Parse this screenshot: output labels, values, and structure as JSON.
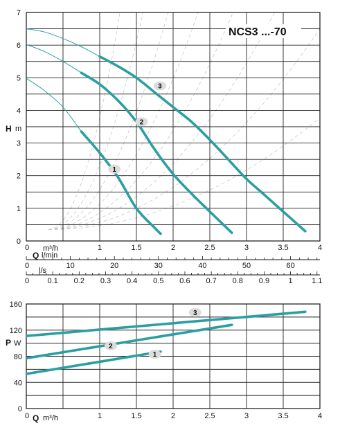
{
  "chart_data": [
    {
      "type": "line",
      "title": "NCS3 ...-70",
      "ylabel": "H m",
      "xlabel": "Q m³/h",
      "xlim": [
        0,
        4
      ],
      "ylim": [
        0,
        7
      ],
      "x_ticks": [
        "0",
        "0.5",
        "1",
        "1.5",
        "2",
        "2.5",
        "3",
        "3.5",
        "4"
      ],
      "y_ticks": [
        "0",
        "1",
        "2",
        "3",
        "4",
        "5",
        "6",
        "7"
      ],
      "secondary_axes": [
        {
          "unit": "l/min",
          "ticks": [
            "0",
            "10",
            "20",
            "30",
            "40",
            "50",
            "60"
          ],
          "tick_values": [
            0,
            10,
            20,
            30,
            40,
            50,
            60
          ]
        },
        {
          "unit": "l/s",
          "ticks": [
            "0",
            "0.1",
            "0.2",
            "0.3",
            "0.4",
            "0.5",
            "0.6",
            "0.7",
            "0.8",
            "0.9",
            "1",
            "1.1"
          ],
          "tick_values": [
            0,
            0.1,
            0.2,
            0.3,
            0.4,
            0.5,
            0.6,
            0.7,
            0.8,
            0.9,
            1.0,
            1.1
          ]
        }
      ],
      "series": [
        {
          "name": "1",
          "curve_start_x": 0.75,
          "x": [
            0,
            0.25,
            0.5,
            0.75,
            1.0,
            1.25,
            1.5,
            1.75,
            1.83
          ],
          "y": [
            4.98,
            4.6,
            4.1,
            3.35,
            2.7,
            1.95,
            1.0,
            0.4,
            0.22
          ]
        },
        {
          "name": "2",
          "curve_start_x": 0.75,
          "x": [
            0,
            0.25,
            0.5,
            0.75,
            1.0,
            1.25,
            1.5,
            1.75,
            2.0,
            2.25,
            2.5,
            2.8
          ],
          "y": [
            6.02,
            5.8,
            5.5,
            5.15,
            4.8,
            4.3,
            3.65,
            2.8,
            2.05,
            1.45,
            0.9,
            0.25
          ]
        },
        {
          "name": "3",
          "curve_start_x": 1.0,
          "x": [
            0,
            0.25,
            0.5,
            0.75,
            1.0,
            1.25,
            1.5,
            1.75,
            2.0,
            2.25,
            2.5,
            2.75,
            3.0,
            3.25,
            3.5,
            3.8
          ],
          "y": [
            6.5,
            6.4,
            6.2,
            5.95,
            5.65,
            5.35,
            5.0,
            4.55,
            4.1,
            3.65,
            3.1,
            2.5,
            1.9,
            1.4,
            0.9,
            0.3
          ]
        }
      ]
    },
    {
      "type": "line",
      "ylabel": "P W",
      "xlabel": "Q m³/h",
      "xlim": [
        0,
        4
      ],
      "ylim": [
        0,
        160
      ],
      "x_ticks": [
        "0",
        "0.5",
        "1",
        "1.5",
        "2",
        "2.5",
        "3",
        "3.5",
        "4"
      ],
      "y_ticks": [
        "0",
        "40",
        "80",
        "120",
        "160"
      ],
      "series": [
        {
          "name": "1",
          "x": [
            0,
            1.83
          ],
          "y": [
            53,
            87
          ]
        },
        {
          "name": "2",
          "x": [
            0,
            2.8
          ],
          "y": [
            77,
            128
          ]
        },
        {
          "name": "3",
          "x": [
            0,
            3.8
          ],
          "y": [
            111,
            148
          ]
        }
      ]
    }
  ]
}
